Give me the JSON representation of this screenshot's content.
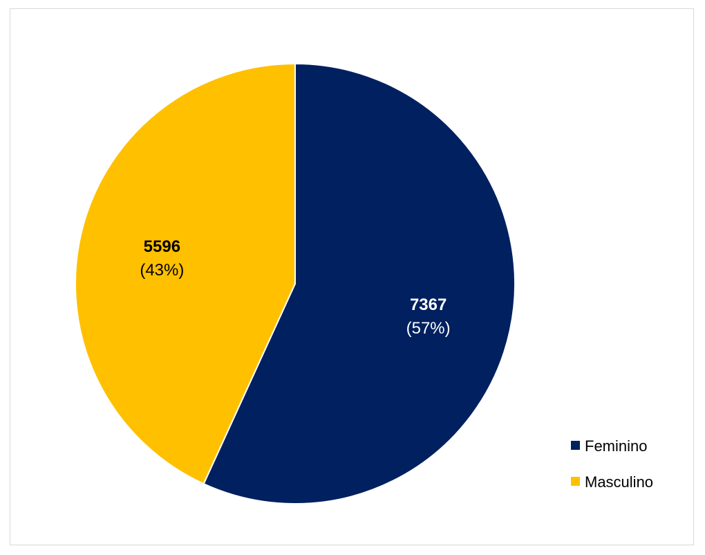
{
  "chart_data": {
    "type": "pie",
    "title": "",
    "slices": [
      {
        "name": "Feminino",
        "value": 7367,
        "percent_label": "(57%)",
        "color": "#002060",
        "label_color": "#ffffff"
      },
      {
        "name": "Masculino",
        "value": 5596,
        "percent_label": "(43%)",
        "color": "#FFC000",
        "label_color": "#000000"
      }
    ],
    "start": "12 o'clock",
    "direction": "clockwise",
    "legend_position": "right-bottom"
  }
}
